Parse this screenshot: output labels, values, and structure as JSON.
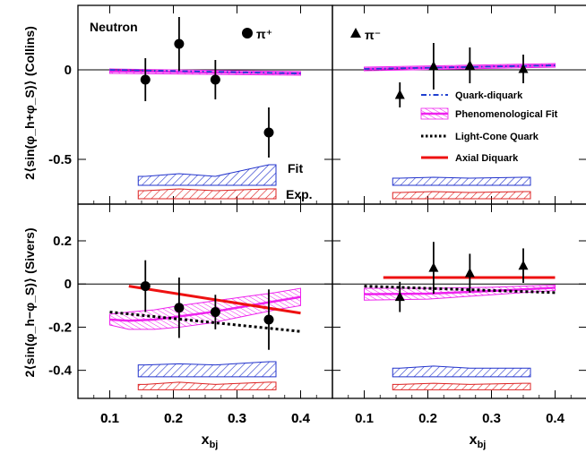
{
  "figure": {
    "x_axis_label": "x",
    "x_axis_label_sub": "bj",
    "y_label_top": "2⟨sin(φ_h+φ_S)⟩ (Collins)",
    "y_label_bottom": "2⟨sin(φ_h−φ_S)⟩ (Sivers)",
    "panel_annotations": {
      "neutron": "Neutron",
      "pi_plus": "π⁺",
      "pi_minus": "π⁻",
      "fit": "Fit",
      "exp": "Exp."
    },
    "legend": [
      {
        "label": "Quark-diquark",
        "style": "dash-dot",
        "color": "#1f3fd0"
      },
      {
        "label": "Phenomenological Fit",
        "style": "hatched-band",
        "color": "#ee22ee"
      },
      {
        "label": "Light-Cone Quark",
        "style": "dotted",
        "color": "#000000"
      },
      {
        "label": "Axial Diquark",
        "style": "solid",
        "color": "#ee1111"
      }
    ]
  },
  "chart_data": [
    {
      "panel": "collins-pi-plus",
      "type": "scatter",
      "xlim": [
        0.05,
        0.45
      ],
      "ylim": [
        -0.75,
        0.36
      ],
      "xticks": [
        "0.1",
        "0.2",
        "0.3",
        "0.4"
      ],
      "xtick_values": [
        0.1,
        0.2,
        0.3,
        0.4
      ],
      "yticks": [
        "-0.5",
        "0"
      ],
      "ytick_values": [
        -0.5,
        0
      ],
      "points": {
        "marker": "circle",
        "x": [
          0.156,
          0.209,
          0.266,
          0.35
        ],
        "y": [
          -0.055,
          0.145,
          -0.055,
          -0.35
        ],
        "err": [
          0.12,
          0.15,
          0.11,
          0.14
        ]
      },
      "band": {
        "x": [
          0.1,
          0.4
        ],
        "low": [
          -0.02,
          -0.03
        ],
        "high": [
          0.005,
          -0.01
        ]
      },
      "quark_diquark": {
        "x": [
          0.1,
          0.4
        ],
        "y": [
          0,
          -0.02
        ]
      },
      "fit_band": {
        "x": [
          0.156,
          0.209,
          0.266,
          0.35
        ],
        "low": [
          -0.645,
          -0.645,
          -0.645,
          -0.645
        ],
        "high": [
          -0.595,
          -0.58,
          -0.595,
          -0.53
        ]
      },
      "exp_band": {
        "x": [
          0.156,
          0.209,
          0.266,
          0.35
        ],
        "low": [
          -0.72,
          -0.72,
          -0.72,
          -0.72
        ],
        "high": [
          -0.675,
          -0.665,
          -0.675,
          -0.665
        ]
      }
    },
    {
      "panel": "collins-pi-minus",
      "type": "scatter",
      "xlim": [
        0.05,
        0.45
      ],
      "ylim": [
        -0.75,
        0.36
      ],
      "xticks": [],
      "xtick_values": [],
      "yticks": [],
      "ytick_values": [
        0,
        -0.5
      ],
      "points": {
        "marker": "triangle",
        "x": [
          0.156,
          0.209,
          0.266,
          0.35
        ],
        "y": [
          -0.14,
          0.02,
          0.025,
          0.005
        ],
        "err": [
          0.07,
          0.13,
          0.1,
          0.08
        ]
      },
      "band": {
        "x": [
          0.1,
          0.4
        ],
        "low": [
          -0.005,
          0.015
        ],
        "high": [
          0.015,
          0.035
        ]
      },
      "quark_diquark": {
        "x": [
          0.1,
          0.4
        ],
        "y": [
          0.005,
          0.025
        ]
      },
      "fit_band": {
        "x": [
          0.156,
          0.209,
          0.266,
          0.35
        ],
        "low": [
          -0.645,
          -0.645,
          -0.645,
          -0.645
        ],
        "high": [
          -0.605,
          -0.6,
          -0.605,
          -0.6
        ]
      },
      "exp_band": {
        "x": [
          0.156,
          0.209,
          0.266,
          0.35
        ],
        "low": [
          -0.72,
          -0.72,
          -0.72,
          -0.72
        ],
        "high": [
          -0.685,
          -0.68,
          -0.685,
          -0.68
        ]
      }
    },
    {
      "panel": "sivers-pi-plus",
      "type": "scatter",
      "xlim": [
        0.05,
        0.45
      ],
      "ylim": [
        -0.53,
        0.37
      ],
      "xticks": [
        "0.1",
        "0.2",
        "0.3",
        "0.4"
      ],
      "xtick_values": [
        0.1,
        0.2,
        0.3,
        0.4
      ],
      "yticks": [
        "-0.4",
        "-0.2",
        "0",
        "0.2"
      ],
      "ytick_values": [
        -0.4,
        -0.2,
        0,
        0.2
      ],
      "points": {
        "marker": "circle",
        "x": [
          0.156,
          0.209,
          0.266,
          0.35
        ],
        "y": [
          -0.01,
          -0.11,
          -0.13,
          -0.165
        ],
        "err": [
          0.12,
          0.14,
          0.08,
          0.14
        ]
      },
      "band": {
        "x": [
          0.1,
          0.13,
          0.17,
          0.21,
          0.26,
          0.31,
          0.36,
          0.4
        ],
        "low": [
          -0.19,
          -0.21,
          -0.21,
          -0.2,
          -0.18,
          -0.15,
          -0.12,
          -0.1
        ],
        "high": [
          -0.14,
          -0.13,
          -0.12,
          -0.1,
          -0.08,
          -0.06,
          -0.04,
          -0.02
        ]
      },
      "light_cone": {
        "x": [
          0.1,
          0.15,
          0.2,
          0.25,
          0.3,
          0.35,
          0.4
        ],
        "y": [
          -0.13,
          -0.145,
          -0.16,
          -0.175,
          -0.19,
          -0.205,
          -0.22
        ]
      },
      "axial": {
        "x": [
          0.13,
          0.4
        ],
        "y": [
          -0.01,
          -0.135
        ]
      },
      "fit_band": {
        "x": [
          0.156,
          0.209,
          0.266,
          0.35
        ],
        "low": [
          -0.43,
          -0.43,
          -0.43,
          -0.43
        ],
        "high": [
          -0.375,
          -0.37,
          -0.375,
          -0.36
        ]
      },
      "exp_band": {
        "x": [
          0.156,
          0.209,
          0.266,
          0.35
        ],
        "low": [
          -0.49,
          -0.49,
          -0.49,
          -0.49
        ],
        "high": [
          -0.465,
          -0.455,
          -0.465,
          -0.455
        ]
      }
    },
    {
      "panel": "sivers-pi-minus",
      "type": "scatter",
      "xlim": [
        0.05,
        0.45
      ],
      "ylim": [
        -0.53,
        0.37
      ],
      "xticks": [
        "0.1",
        "0.2",
        "0.3",
        "0.4"
      ],
      "xtick_values": [
        0.1,
        0.2,
        0.3,
        0.4
      ],
      "yticks": [],
      "ytick_values": [
        -0.4,
        -0.2,
        0,
        0.2
      ],
      "points": {
        "marker": "triangle",
        "x": [
          0.156,
          0.209,
          0.266,
          0.35
        ],
        "y": [
          -0.06,
          0.075,
          0.05,
          0.085
        ],
        "err": [
          0.07,
          0.12,
          0.09,
          0.08
        ]
      },
      "band": {
        "x": [
          0.1,
          0.2,
          0.3,
          0.4
        ],
        "low": [
          -0.075,
          -0.07,
          -0.05,
          -0.03
        ],
        "high": [
          -0.02,
          -0.02,
          -0.015,
          -0.005
        ]
      },
      "light_cone": {
        "x": [
          0.1,
          0.2,
          0.3,
          0.4
        ],
        "y": [
          -0.01,
          -0.02,
          -0.03,
          -0.04
        ]
      },
      "axial": {
        "x": [
          0.13,
          0.4
        ],
        "y": [
          0.03,
          0.03
        ]
      },
      "fit_band": {
        "x": [
          0.156,
          0.209,
          0.266,
          0.35
        ],
        "low": [
          -0.43,
          -0.43,
          -0.43,
          -0.43
        ],
        "high": [
          -0.39,
          -0.38,
          -0.39,
          -0.39
        ]
      },
      "exp_band": {
        "x": [
          0.156,
          0.209,
          0.266,
          0.35
        ],
        "low": [
          -0.49,
          -0.49,
          -0.49,
          -0.49
        ],
        "high": [
          -0.465,
          -0.46,
          -0.465,
          -0.46
        ]
      }
    }
  ]
}
